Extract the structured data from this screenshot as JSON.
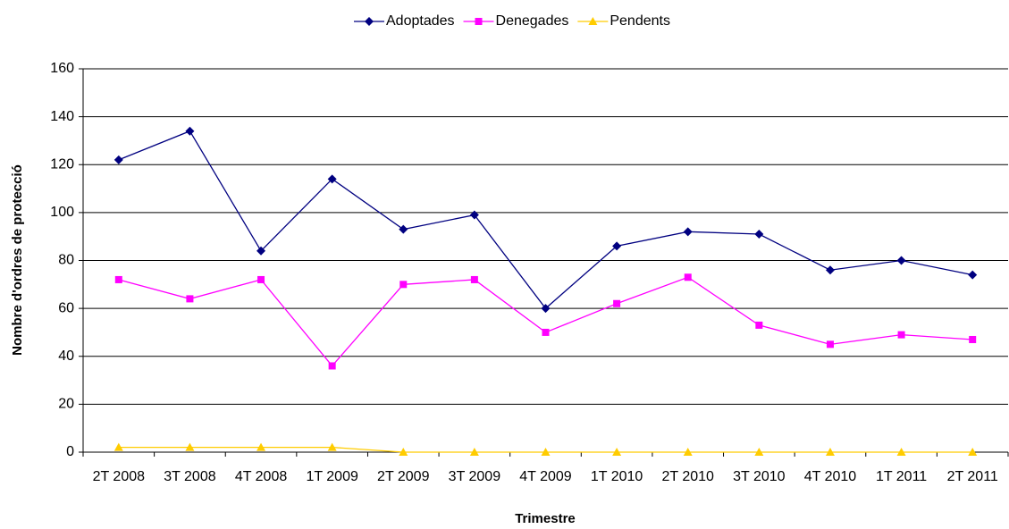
{
  "chart_data": {
    "type": "line",
    "x_label": "Trimestre",
    "y_label": "Nombre d'ordres de protecció",
    "categories": [
      "2T 2008",
      "3T 2008",
      "4T 2008",
      "1T 2009",
      "2T 2009",
      "3T 2009",
      "4T 2009",
      "1T 2010",
      "2T 2010",
      "3T 2010",
      "4T 2010",
      "1T 2011",
      "2T 2011"
    ],
    "series": [
      {
        "name": "Adoptades",
        "color": "#000080",
        "marker": "diamond",
        "values": [
          122,
          134,
          84,
          114,
          93,
          99,
          60,
          86,
          92,
          91,
          76,
          80,
          74
        ]
      },
      {
        "name": "Denegades",
        "color": "#ff00ff",
        "marker": "square",
        "values": [
          72,
          64,
          72,
          36,
          70,
          72,
          50,
          62,
          73,
          53,
          45,
          49,
          47
        ]
      },
      {
        "name": "Pendents",
        "color": "#ffcc00",
        "marker": "triangle",
        "values": [
          2,
          2,
          2,
          2,
          0,
          0,
          0,
          0,
          0,
          0,
          0,
          0,
          0
        ]
      }
    ],
    "ylim": [
      0,
      160
    ],
    "yticks": [
      0,
      20,
      40,
      60,
      80,
      100,
      120,
      140,
      160
    ],
    "grid": true,
    "legend": "top"
  }
}
